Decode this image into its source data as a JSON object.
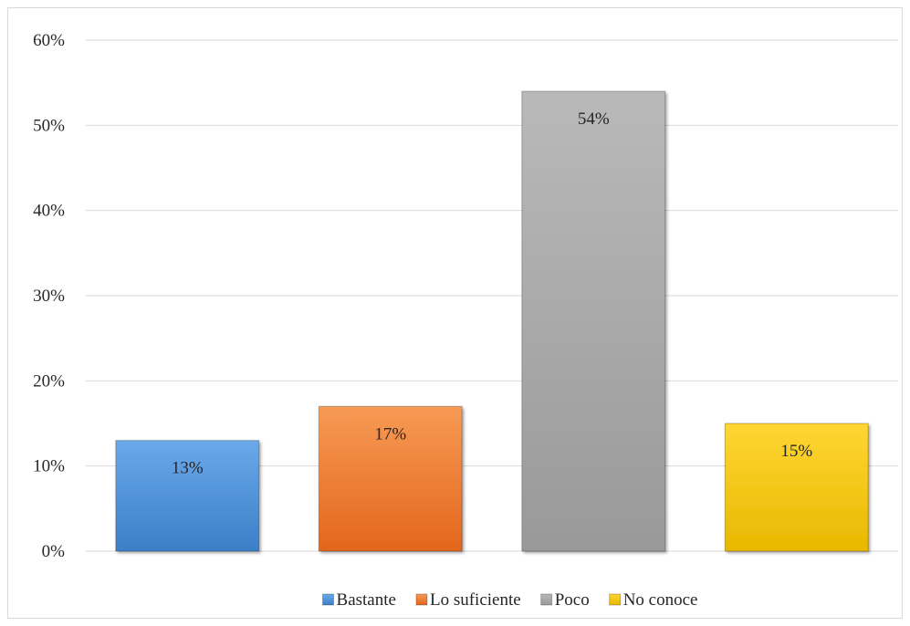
{
  "chart_data": {
    "type": "bar",
    "categories": [
      "Bastante",
      "Lo suficiente",
      "Poco",
      "No conoce"
    ],
    "values": [
      13,
      17,
      54,
      15
    ],
    "value_labels": [
      "13%",
      "17%",
      "54%",
      "15%"
    ],
    "colors": [
      "#4a90d9",
      "#f07a2e",
      "#a6a6a6",
      "#f5c400"
    ],
    "ylim": [
      0,
      60
    ],
    "y_ticks": [
      0,
      10,
      20,
      30,
      40,
      50,
      60
    ],
    "y_tick_labels": [
      "0%",
      "10%",
      "20%",
      "30%",
      "40%",
      "50%",
      "60%"
    ],
    "grid": true,
    "legend_position": "bottom",
    "title": "",
    "xlabel": "",
    "ylabel": ""
  }
}
